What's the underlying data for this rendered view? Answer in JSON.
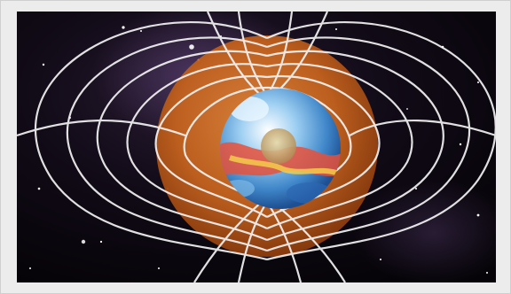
{
  "image": {
    "subject": "earth-magnetic-field-illustration"
  }
}
